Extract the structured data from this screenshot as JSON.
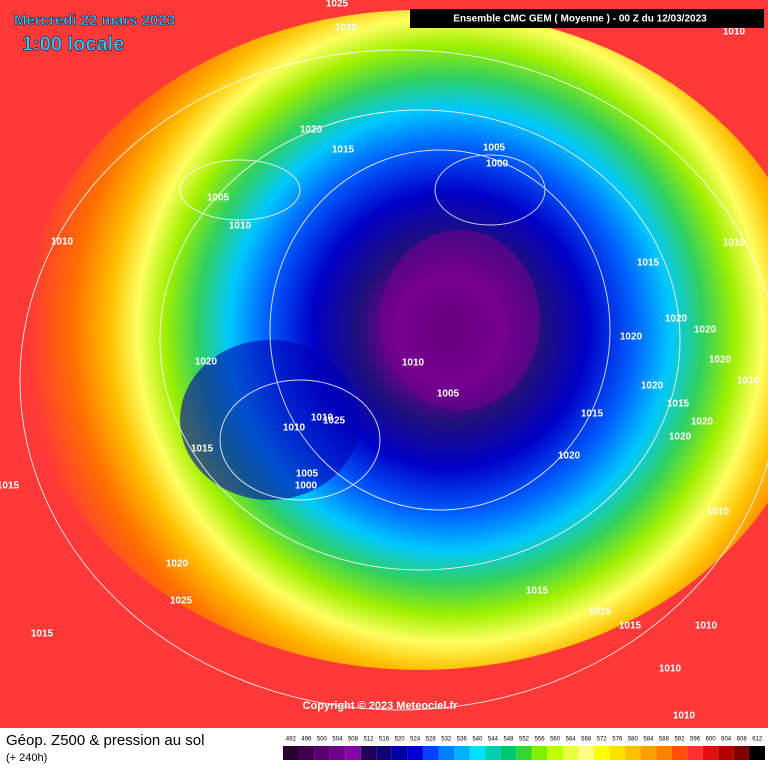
{
  "header": {
    "date": "Mercredi 22 mars 2023",
    "time": "1:00 locale",
    "model": "Ensemble CMC GEM  ( Moyenne )  -  00 Z du 12/03/2023"
  },
  "isobar_labels": [
    1025,
    1030,
    1010,
    1020,
    1015,
    1005,
    1000,
    1005,
    1010,
    1010,
    1010,
    1015,
    1020,
    1020,
    1020,
    1020,
    1020,
    1010,
    1010,
    1020,
    1005,
    1015,
    1015,
    1010,
    1025,
    1020,
    1010,
    1020,
    1015,
    1020,
    1005,
    1000,
    1015,
    1010,
    1020,
    1015,
    1025,
    1015,
    1015,
    1010,
    1015,
    1010,
    1010
  ],
  "copyright": "Copyright © 2023 Meteociel.fr",
  "footer": {
    "title": "Géop. Z500 & pression au sol",
    "lead": "(+ 240h)"
  },
  "legend": {
    "values": [
      492,
      496,
      500,
      504,
      508,
      512,
      516,
      520,
      524,
      528,
      532,
      536,
      540,
      544,
      548,
      552,
      556,
      560,
      564,
      568,
      572,
      576,
      580,
      584,
      588,
      592,
      596,
      600,
      604,
      608,
      612
    ],
    "colors": [
      "#2a0030",
      "#400050",
      "#580070",
      "#700090",
      "#8800a8",
      "#20005a",
      "#10007a",
      "#0000a0",
      "#0000d0",
      "#0040ff",
      "#0080ff",
      "#00b0ff",
      "#00e0ff",
      "#00d0b0",
      "#00c870",
      "#30d830",
      "#80f000",
      "#c0ff00",
      "#e8ff40",
      "#ffff80",
      "#ffff00",
      "#ffe000",
      "#ffc000",
      "#ffa000",
      "#ff8000",
      "#ff5000",
      "#ff3030",
      "#e01010",
      "#b00000",
      "#800000",
      "#000000"
    ]
  }
}
